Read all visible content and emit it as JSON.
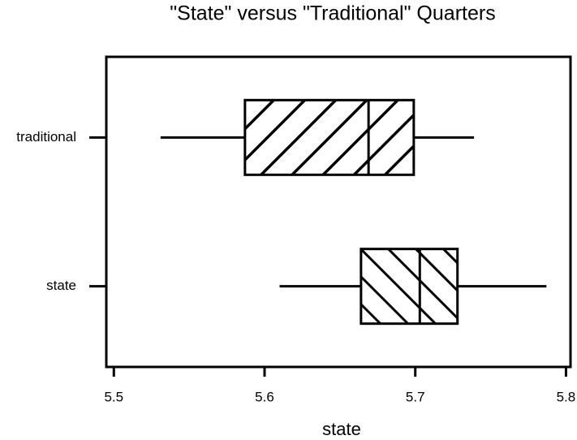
{
  "chart_data": {
    "type": "box",
    "title": "\"State\" versus \"Traditional\" Quarters",
    "x_label": "state",
    "categories": [
      "traditional",
      "state"
    ],
    "boxes": [
      {
        "min": 5.531,
        "q1": 5.587,
        "median": 5.669,
        "q3": 5.699,
        "max": 5.739
      },
      {
        "min": 5.61,
        "q1": 5.664,
        "median": 5.703,
        "q3": 5.728,
        "max": 5.787
      }
    ],
    "hatch": [
      "/",
      "\\"
    ],
    "color": "#000000",
    "xlim": [
      5.495,
      5.803
    ],
    "xticks": [
      5.5,
      5.6,
      5.7,
      5.8
    ]
  }
}
